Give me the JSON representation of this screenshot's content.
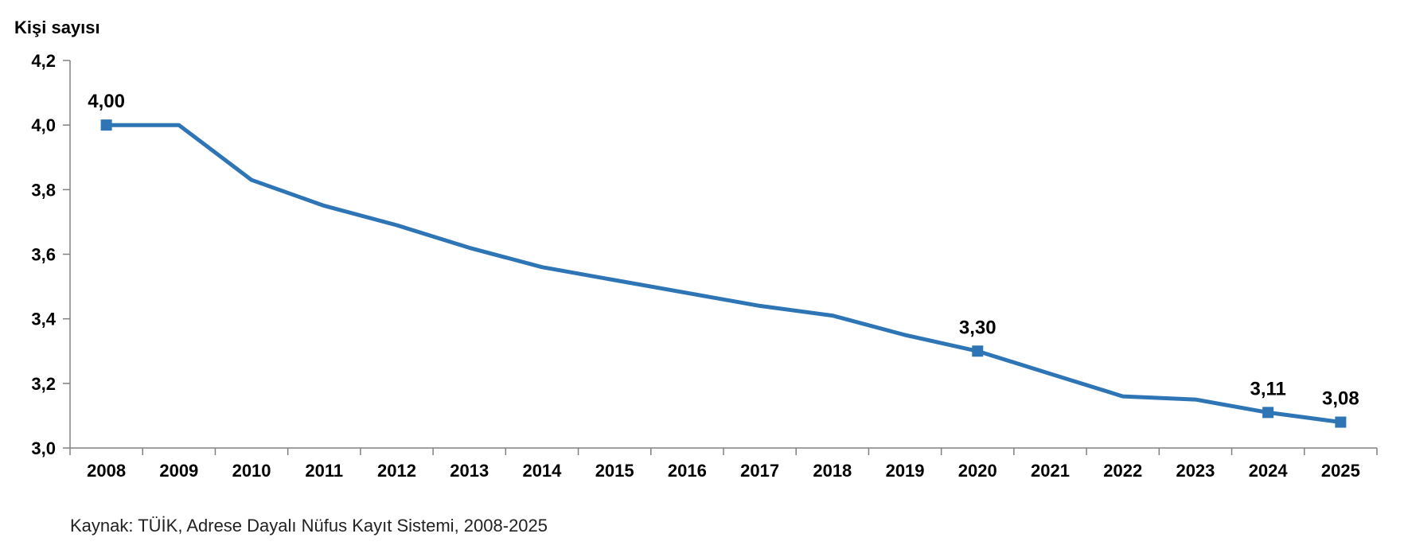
{
  "chart_data": {
    "type": "line",
    "ylabel": "Kişi sayısı",
    "xlabel": "",
    "categories": [
      "2008",
      "2009",
      "2010",
      "2011",
      "2012",
      "2013",
      "2014",
      "2015",
      "2016",
      "2017",
      "2018",
      "2019",
      "2020",
      "2021",
      "2022",
      "2023",
      "2024",
      "2025"
    ],
    "series": [
      {
        "values": [
          4.0,
          4.0,
          3.83,
          3.75,
          3.69,
          3.62,
          3.56,
          3.52,
          3.48,
          3.44,
          3.41,
          3.35,
          3.3,
          3.23,
          3.16,
          3.15,
          3.11,
          3.08
        ],
        "color": "#2e75b6"
      }
    ],
    "marked_points": [
      {
        "category": "2008",
        "label": "4,00"
      },
      {
        "category": "2020",
        "label": "3,30"
      },
      {
        "category": "2024",
        "label": "3,11"
      },
      {
        "category": "2025",
        "label": "3,08"
      }
    ],
    "yticks": [
      "3,0",
      "3,2",
      "3,4",
      "3,6",
      "3,8",
      "4,0",
      "4,2"
    ],
    "ylim": [
      3.0,
      4.2
    ],
    "grid": false,
    "legend": "none"
  },
  "source": "Kaynak: TÜİK, Adrese Dayalı Nüfus Kayıt Sistemi, 2008-2025"
}
